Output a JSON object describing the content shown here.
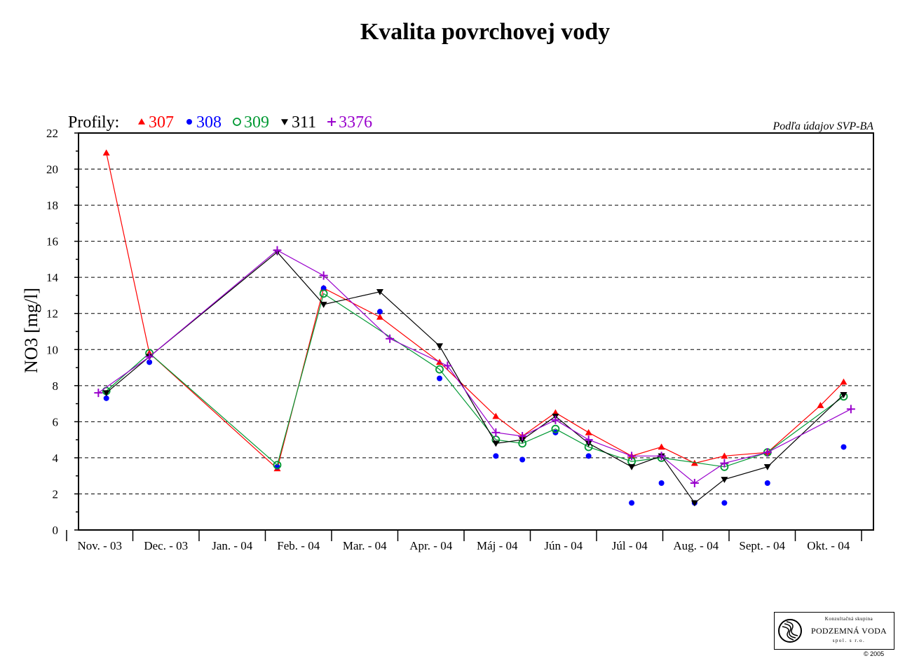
{
  "chart_data": {
    "type": "line",
    "title": "Kvalita povrchovej vody",
    "ylabel": "NO3 [mg/l]",
    "ylim": [
      0,
      22
    ],
    "yticks": [
      "0",
      "2",
      "4",
      "6",
      "8",
      "10",
      "12",
      "14",
      "16",
      "18",
      "20",
      "22"
    ],
    "ytick_values": [
      0,
      2,
      4,
      6,
      8,
      10,
      12,
      14,
      16,
      18,
      20,
      22
    ],
    "grid": "horizontal dashed",
    "legend_prefix": "Profily:",
    "legend_position": "top-left",
    "source_note": "Podľa údajov SVP-BA",
    "categories": [
      "Nov. - 03",
      "Dec. - 03",
      "Jan. - 04",
      "Feb. - 04",
      "Mar. - 04",
      "Apr. - 04",
      "Máj - 04",
      "Jún - 04",
      "Júl - 04",
      "Aug. - 04",
      "Sept. - 04",
      "Okt. - 04"
    ],
    "series": [
      {
        "name": "307",
        "color": "#ff0000",
        "marker": "triangle-up",
        "connected": true,
        "points": [
          [
            0.42,
            20.9
          ],
          [
            1.07,
            9.8
          ],
          [
            3.0,
            3.4
          ],
          [
            3.7,
            13.4
          ],
          [
            4.55,
            11.8
          ],
          [
            5.45,
            9.3
          ],
          [
            6.3,
            6.3
          ],
          [
            6.7,
            5.2
          ],
          [
            7.2,
            6.5
          ],
          [
            7.7,
            5.4
          ],
          [
            8.35,
            4.1
          ],
          [
            8.8,
            4.6
          ],
          [
            9.3,
            3.7
          ],
          [
            9.75,
            4.1
          ],
          [
            10.4,
            4.3
          ],
          [
            11.2,
            6.9
          ],
          [
            11.55,
            8.2
          ]
        ]
      },
      {
        "name": "308",
        "color": "#0000ff",
        "marker": "circle",
        "connected": false,
        "points": [
          [
            0.42,
            7.3
          ],
          [
            1.07,
            9.3
          ],
          [
            3.0,
            3.5
          ],
          [
            3.7,
            13.4
          ],
          [
            4.55,
            12.1
          ],
          [
            5.45,
            8.4
          ],
          [
            6.3,
            4.1
          ],
          [
            6.7,
            3.9
          ],
          [
            7.2,
            5.4
          ],
          [
            7.7,
            4.1
          ],
          [
            8.35,
            1.5
          ],
          [
            8.8,
            2.6
          ],
          [
            9.3,
            1.5
          ],
          [
            9.75,
            1.5
          ],
          [
            10.4,
            2.6
          ],
          [
            11.55,
            4.6
          ]
        ]
      },
      {
        "name": "309",
        "color": "#009933",
        "marker": "circle-open",
        "connected": true,
        "points": [
          [
            0.42,
            7.7
          ],
          [
            1.07,
            9.8
          ],
          [
            3.0,
            3.6
          ],
          [
            3.7,
            13.1
          ],
          [
            5.45,
            8.9
          ],
          [
            6.3,
            5.0
          ],
          [
            6.7,
            4.8
          ],
          [
            7.2,
            5.6
          ],
          [
            7.7,
            4.6
          ],
          [
            8.35,
            3.8
          ],
          [
            8.8,
            4.0
          ],
          [
            9.75,
            3.5
          ],
          [
            10.4,
            4.3
          ],
          [
            11.55,
            7.4
          ]
        ]
      },
      {
        "name": "311",
        "color": "#000000",
        "marker": "triangle-down",
        "connected": true,
        "points": [
          [
            0.42,
            7.6
          ],
          [
            1.07,
            9.6
          ],
          [
            3.0,
            15.4
          ],
          [
            3.7,
            12.5
          ],
          [
            4.55,
            13.2
          ],
          [
            5.45,
            10.2
          ],
          [
            6.3,
            4.8
          ],
          [
            6.7,
            5.0
          ],
          [
            7.2,
            6.3
          ],
          [
            7.7,
            4.8
          ],
          [
            8.35,
            3.5
          ],
          [
            8.8,
            4.1
          ],
          [
            9.3,
            1.5
          ],
          [
            9.75,
            2.8
          ],
          [
            10.4,
            3.5
          ],
          [
            11.55,
            7.5
          ]
        ]
      },
      {
        "name": "3376",
        "color": "#9900cc",
        "marker": "plus",
        "connected": true,
        "points": [
          [
            0.3,
            7.6
          ],
          [
            1.07,
            9.6
          ],
          [
            3.0,
            15.5
          ],
          [
            3.7,
            14.1
          ],
          [
            4.7,
            10.6
          ],
          [
            5.57,
            9.1
          ],
          [
            6.3,
            5.4
          ],
          [
            6.7,
            5.2
          ],
          [
            7.2,
            6.1
          ],
          [
            7.7,
            5.0
          ],
          [
            8.35,
            4.1
          ],
          [
            8.8,
            4.1
          ],
          [
            9.3,
            2.6
          ],
          [
            9.75,
            3.7
          ],
          [
            10.4,
            4.3
          ],
          [
            11.66,
            6.7
          ]
        ]
      }
    ]
  },
  "logo": {
    "top_text": "Konzultačná skupina",
    "main_text": "PODZEMNÁ VODA",
    "sub_text": "spol. s r.o.",
    "copyright": "© 2005"
  }
}
